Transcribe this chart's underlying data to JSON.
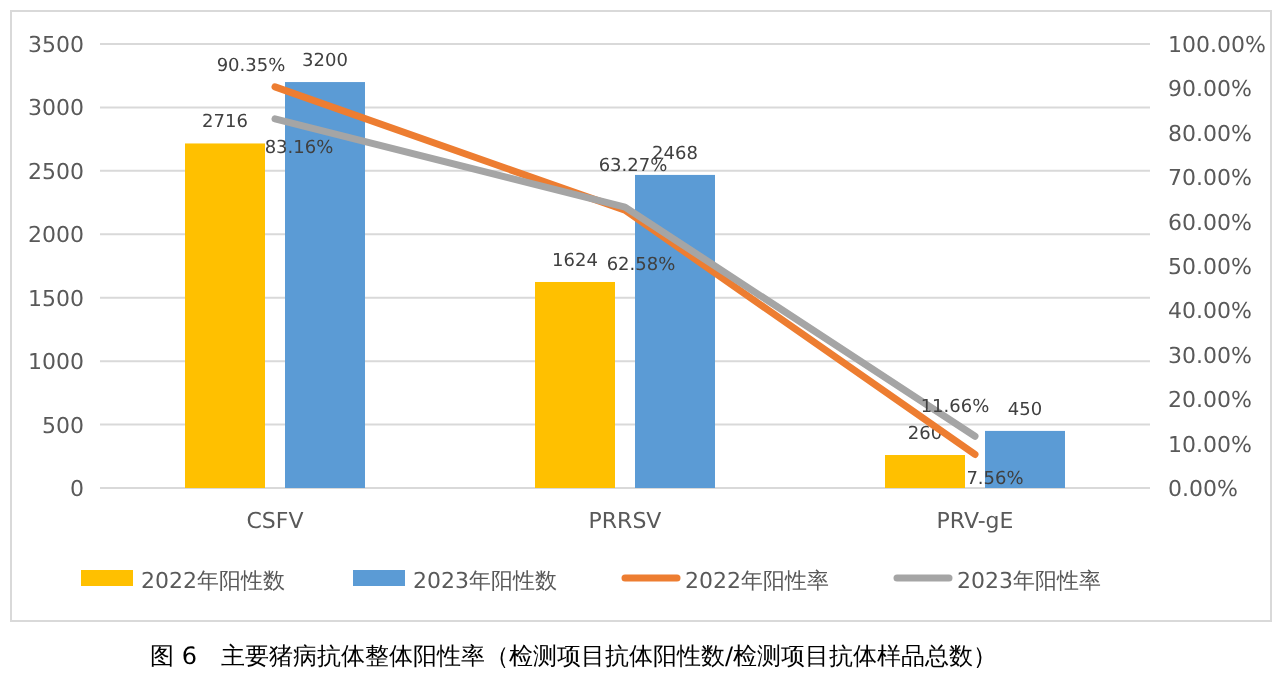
{
  "chart_data": {
    "type": "bar",
    "categories": [
      "CSFV",
      "PRRSV",
      "PRV-gE"
    ],
    "series": [
      {
        "name": "2022年阳性数",
        "color": "#ffc000",
        "values": [
          2716,
          1624,
          260
        ],
        "value_labels": [
          "2716",
          "1624",
          "260"
        ]
      },
      {
        "name": "2023年阳性数",
        "color": "#5b9bd5",
        "values": [
          3200,
          2468,
          450
        ],
        "value_labels": [
          "3200",
          "2468",
          "450"
        ]
      },
      {
        "name": "2022年阳性率",
        "type": "line",
        "axis": "y2",
        "color": "#ed7d31",
        "values": [
          90.35,
          62.58,
          7.56
        ],
        "value_labels": [
          "90.35%",
          "62.58%",
          "7.56%"
        ]
      },
      {
        "name": "2023年阳性率",
        "type": "line",
        "axis": "y2",
        "color": "#a5a5a5",
        "values": [
          83.16,
          63.27,
          11.66
        ],
        "value_labels": [
          "83.16%",
          "63.27%",
          "11.66%"
        ]
      }
    ],
    "ylim": [
      0,
      3500
    ],
    "yticks": [
      0,
      500,
      1000,
      1500,
      2000,
      2500,
      3000,
      3500
    ],
    "y2lim": [
      0,
      100
    ],
    "y2ticks": [
      {
        "value": 0,
        "label": "0.00%"
      },
      {
        "value": 10,
        "label": "10.00%"
      },
      {
        "value": 20,
        "label": "20.00%"
      },
      {
        "value": 30,
        "label": "30.00%"
      },
      {
        "value": 40,
        "label": "40.00%"
      },
      {
        "value": 50,
        "label": "50.00%"
      },
      {
        "value": 60,
        "label": "60.00%"
      },
      {
        "value": 70,
        "label": "70.00%"
      },
      {
        "value": 80,
        "label": "80.00%"
      },
      {
        "value": 90,
        "label": "90.00%"
      },
      {
        "value": 100,
        "label": "100.00%"
      }
    ],
    "grid": "y",
    "legend": "bottom",
    "annotations": [
      "图 6　主要猪病抗体整体阳性率（检测项目抗体阳性数/检测项目抗体样品总数）"
    ]
  }
}
